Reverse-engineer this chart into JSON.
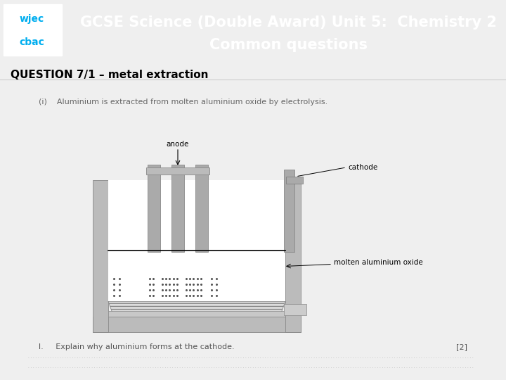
{
  "header_bg_color": "#00AEEF",
  "header_text_color": "#FFFFFF",
  "header_line1": "GCSE Science (Double Award) Unit 5:  Chemistry 2",
  "header_line2": "Common questions",
  "header_font_size": 15,
  "question_title": "QUESTION 7/1 – metal extraction",
  "question_title_font_size": 11,
  "sub_text": "(i)    Aluminium is extracted from molten aluminium oxide by electrolysis.",
  "sub_text_font_size": 8,
  "question_text": "l.     Explain why aluminium forms at the cathode.",
  "question_marks": "[2]",
  "question_font_size": 8,
  "body_bg_color": "#FFFFFF",
  "logo_white": "#FFFFFF",
  "answer_line_color": "#AAAAAA"
}
